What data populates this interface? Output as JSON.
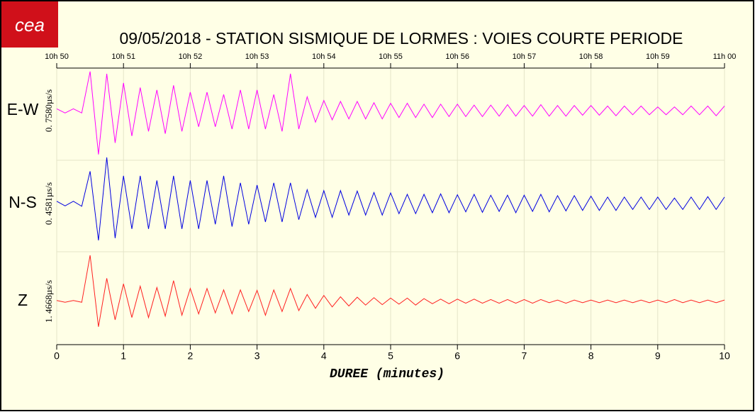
{
  "chart_data": {
    "type": "seismogram",
    "logo": "cea",
    "title": "09/05/2018  -  STATION SISMIQUE DE LORMES : VOIES COURTE PERIODE",
    "xlabel": "DUREE (minutes)",
    "xlim": [
      0,
      10
    ],
    "xticks": [
      0,
      1,
      2,
      3,
      4,
      5,
      6,
      7,
      8,
      9,
      10
    ],
    "x2ticks": [
      {
        "value": 0,
        "label": "10h 50"
      },
      {
        "value": 1,
        "label": "10h 51"
      },
      {
        "value": 2,
        "label": "10h 52"
      },
      {
        "value": 3,
        "label": "10h 53"
      },
      {
        "value": 4,
        "label": "10h 54"
      },
      {
        "value": 5,
        "label": "10h 55"
      },
      {
        "value": 6,
        "label": "10h 56"
      },
      {
        "value": 7,
        "label": "10h 57"
      },
      {
        "value": 8,
        "label": "10h 58"
      },
      {
        "value": 9,
        "label": "10h 59"
      },
      {
        "value": 10,
        "label": "11h 00"
      }
    ],
    "grid": true,
    "x": [
      0,
      0.125,
      0.25,
      0.375,
      0.5,
      0.625,
      0.75,
      0.875,
      1,
      1.125,
      1.25,
      1.375,
      1.5,
      1.625,
      1.75,
      1.875,
      2,
      2.125,
      2.25,
      2.375,
      2.5,
      2.625,
      2.75,
      2.875,
      3,
      3.125,
      3.25,
      3.375,
      3.5,
      3.625,
      3.75,
      3.875,
      4,
      4.125,
      4.25,
      4.375,
      4.5,
      4.625,
      4.75,
      4.875,
      5,
      5.125,
      5.25,
      5.375,
      5.5,
      5.625,
      5.75,
      5.875,
      6,
      6.125,
      6.25,
      6.375,
      6.5,
      6.625,
      6.75,
      6.875,
      7,
      7.125,
      7.25,
      7.375,
      7.5,
      7.625,
      7.75,
      7.875,
      8,
      8.125,
      8.25,
      8.375,
      8.5,
      8.625,
      8.75,
      8.875,
      9,
      9.125,
      9.25,
      9.375,
      9.5,
      9.625,
      9.75,
      9.875,
      10
    ],
    "series": [
      {
        "name": "E-W",
        "scale_label": "0. 7580µs/s",
        "color": "#ff00ff",
        "values": [
          0.04,
          0.05,
          0.04,
          0.05,
          0.85,
          0.95,
          0.8,
          0.7,
          0.6,
          0.55,
          0.5,
          0.45,
          0.45,
          0.5,
          0.55,
          0.45,
          0.4,
          0.35,
          0.4,
          0.35,
          0.35,
          0.4,
          0.45,
          0.4,
          0.45,
          0.4,
          0.35,
          0.45,
          0.8,
          0.4,
          0.3,
          0.25,
          0.22,
          0.2,
          0.2,
          0.18,
          0.2,
          0.18,
          0.17,
          0.18,
          0.16,
          0.15,
          0.16,
          0.15,
          0.14,
          0.15,
          0.14,
          0.13,
          0.14,
          0.13,
          0.12,
          0.13,
          0.12,
          0.12,
          0.13,
          0.12,
          0.11,
          0.12,
          0.13,
          0.12,
          0.11,
          0.12,
          0.11,
          0.1,
          0.11,
          0.1,
          0.1,
          0.11,
          0.1,
          0.09,
          0.1,
          0.09,
          0.08,
          0.09,
          0.08,
          0.09,
          0.1,
          0.09,
          0.1,
          0.11,
          0.1
        ]
      },
      {
        "name": "N-S",
        "scale_label": "0. 4581µs/s",
        "color": "#0000e0",
        "values": [
          0.05,
          0.05,
          0.05,
          0.06,
          0.7,
          0.8,
          1.0,
          0.75,
          0.6,
          0.55,
          0.6,
          0.55,
          0.5,
          0.55,
          0.6,
          0.55,
          0.5,
          0.55,
          0.5,
          0.45,
          0.6,
          0.5,
          0.45,
          0.45,
          0.4,
          0.4,
          0.45,
          0.4,
          0.45,
          0.35,
          0.3,
          0.3,
          0.28,
          0.3,
          0.28,
          0.25,
          0.27,
          0.25,
          0.24,
          0.25,
          0.23,
          0.22,
          0.2,
          0.22,
          0.2,
          0.2,
          0.21,
          0.2,
          0.19,
          0.18,
          0.2,
          0.19,
          0.18,
          0.17,
          0.18,
          0.2,
          0.18,
          0.17,
          0.2,
          0.18,
          0.17,
          0.16,
          0.17,
          0.15,
          0.16,
          0.15,
          0.14,
          0.15,
          0.14,
          0.13,
          0.14,
          0.13,
          0.14,
          0.13,
          0.12,
          0.13,
          0.14,
          0.13,
          0.15,
          0.13,
          0.14
        ]
      },
      {
        "name": "Z",
        "scale_label": "1. 4668µs/s",
        "color": "#ff2020",
        "values": [
          0.02,
          0.02,
          0.02,
          0.02,
          1.0,
          0.55,
          0.5,
          0.4,
          0.38,
          0.35,
          0.33,
          0.35,
          0.3,
          0.32,
          0.45,
          0.3,
          0.28,
          0.27,
          0.28,
          0.25,
          0.25,
          0.27,
          0.25,
          0.22,
          0.24,
          0.3,
          0.25,
          0.22,
          0.28,
          0.2,
          0.15,
          0.15,
          0.13,
          0.12,
          0.1,
          0.1,
          0.09,
          0.08,
          0.08,
          0.07,
          0.07,
          0.06,
          0.07,
          0.08,
          0.06,
          0.05,
          0.05,
          0.05,
          0.05,
          0.04,
          0.05,
          0.04,
          0.04,
          0.04,
          0.04,
          0.04,
          0.04,
          0.04,
          0.04,
          0.03,
          0.03,
          0.04,
          0.03,
          0.03,
          0.03,
          0.03,
          0.03,
          0.03,
          0.03,
          0.03,
          0.03,
          0.03,
          0.03,
          0.03,
          0.04,
          0.03,
          0.03,
          0.03,
          0.03,
          0.03,
          0.03
        ]
      }
    ]
  }
}
